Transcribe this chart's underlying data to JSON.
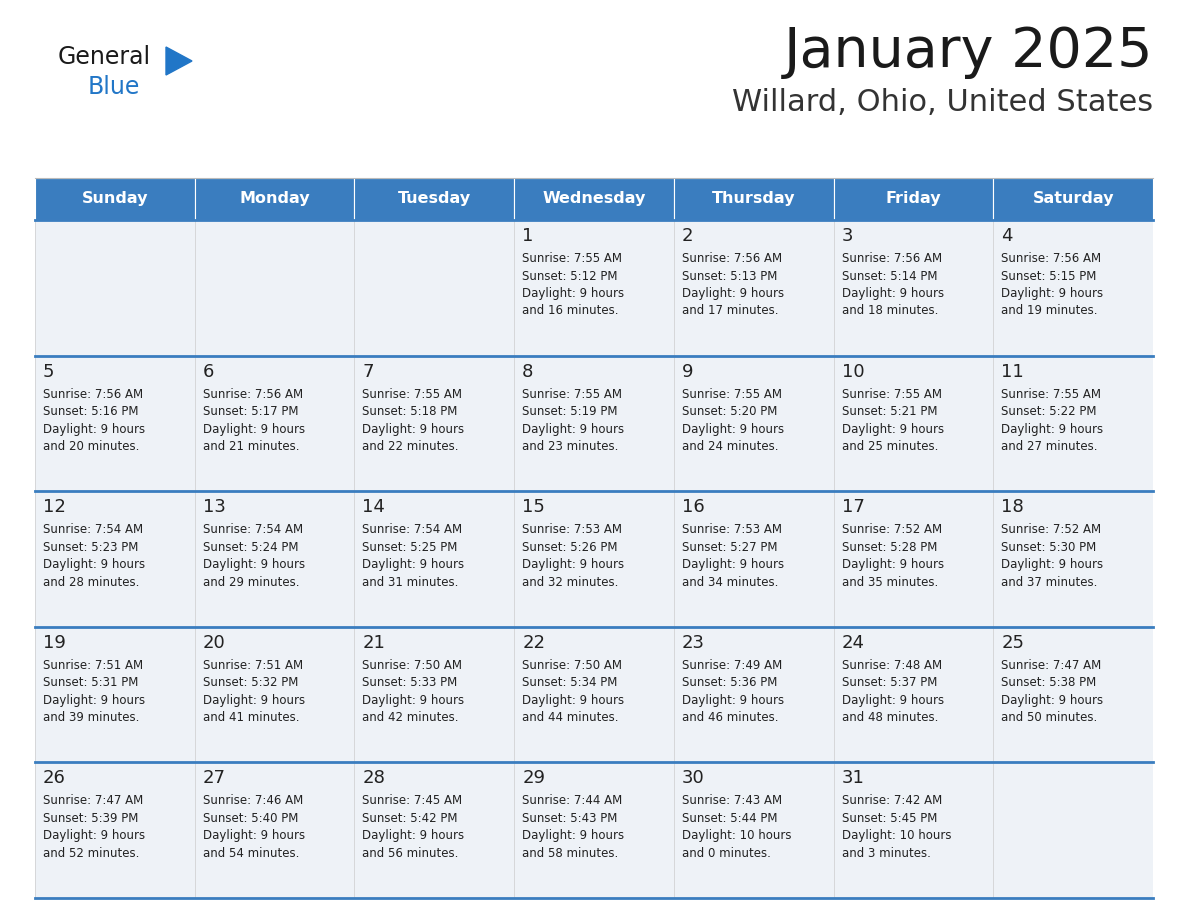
{
  "title": "January 2025",
  "subtitle": "Willard, Ohio, United States",
  "header_color": "#3a7dbf",
  "header_text_color": "#ffffff",
  "cell_bg_color": "#eef2f7",
  "border_color": "#3a7dbf",
  "title_color": "#1a1a1a",
  "subtitle_color": "#333333",
  "days_of_week": [
    "Sunday",
    "Monday",
    "Tuesday",
    "Wednesday",
    "Thursday",
    "Friday",
    "Saturday"
  ],
  "calendar": [
    [
      {
        "day": "",
        "sunrise": "",
        "sunset": "",
        "daylight": ""
      },
      {
        "day": "",
        "sunrise": "",
        "sunset": "",
        "daylight": ""
      },
      {
        "day": "",
        "sunrise": "",
        "sunset": "",
        "daylight": ""
      },
      {
        "day": "1",
        "sunrise": "7:55 AM",
        "sunset": "5:12 PM",
        "daylight": "9 hours\nand 16 minutes."
      },
      {
        "day": "2",
        "sunrise": "7:56 AM",
        "sunset": "5:13 PM",
        "daylight": "9 hours\nand 17 minutes."
      },
      {
        "day": "3",
        "sunrise": "7:56 AM",
        "sunset": "5:14 PM",
        "daylight": "9 hours\nand 18 minutes."
      },
      {
        "day": "4",
        "sunrise": "7:56 AM",
        "sunset": "5:15 PM",
        "daylight": "9 hours\nand 19 minutes."
      }
    ],
    [
      {
        "day": "5",
        "sunrise": "7:56 AM",
        "sunset": "5:16 PM",
        "daylight": "9 hours\nand 20 minutes."
      },
      {
        "day": "6",
        "sunrise": "7:56 AM",
        "sunset": "5:17 PM",
        "daylight": "9 hours\nand 21 minutes."
      },
      {
        "day": "7",
        "sunrise": "7:55 AM",
        "sunset": "5:18 PM",
        "daylight": "9 hours\nand 22 minutes."
      },
      {
        "day": "8",
        "sunrise": "7:55 AM",
        "sunset": "5:19 PM",
        "daylight": "9 hours\nand 23 minutes."
      },
      {
        "day": "9",
        "sunrise": "7:55 AM",
        "sunset": "5:20 PM",
        "daylight": "9 hours\nand 24 minutes."
      },
      {
        "day": "10",
        "sunrise": "7:55 AM",
        "sunset": "5:21 PM",
        "daylight": "9 hours\nand 25 minutes."
      },
      {
        "day": "11",
        "sunrise": "7:55 AM",
        "sunset": "5:22 PM",
        "daylight": "9 hours\nand 27 minutes."
      }
    ],
    [
      {
        "day": "12",
        "sunrise": "7:54 AM",
        "sunset": "5:23 PM",
        "daylight": "9 hours\nand 28 minutes."
      },
      {
        "day": "13",
        "sunrise": "7:54 AM",
        "sunset": "5:24 PM",
        "daylight": "9 hours\nand 29 minutes."
      },
      {
        "day": "14",
        "sunrise": "7:54 AM",
        "sunset": "5:25 PM",
        "daylight": "9 hours\nand 31 minutes."
      },
      {
        "day": "15",
        "sunrise": "7:53 AM",
        "sunset": "5:26 PM",
        "daylight": "9 hours\nand 32 minutes."
      },
      {
        "day": "16",
        "sunrise": "7:53 AM",
        "sunset": "5:27 PM",
        "daylight": "9 hours\nand 34 minutes."
      },
      {
        "day": "17",
        "sunrise": "7:52 AM",
        "sunset": "5:28 PM",
        "daylight": "9 hours\nand 35 minutes."
      },
      {
        "day": "18",
        "sunrise": "7:52 AM",
        "sunset": "5:30 PM",
        "daylight": "9 hours\nand 37 minutes."
      }
    ],
    [
      {
        "day": "19",
        "sunrise": "7:51 AM",
        "sunset": "5:31 PM",
        "daylight": "9 hours\nand 39 minutes."
      },
      {
        "day": "20",
        "sunrise": "7:51 AM",
        "sunset": "5:32 PM",
        "daylight": "9 hours\nand 41 minutes."
      },
      {
        "day": "21",
        "sunrise": "7:50 AM",
        "sunset": "5:33 PM",
        "daylight": "9 hours\nand 42 minutes."
      },
      {
        "day": "22",
        "sunrise": "7:50 AM",
        "sunset": "5:34 PM",
        "daylight": "9 hours\nand 44 minutes."
      },
      {
        "day": "23",
        "sunrise": "7:49 AM",
        "sunset": "5:36 PM",
        "daylight": "9 hours\nand 46 minutes."
      },
      {
        "day": "24",
        "sunrise": "7:48 AM",
        "sunset": "5:37 PM",
        "daylight": "9 hours\nand 48 minutes."
      },
      {
        "day": "25",
        "sunrise": "7:47 AM",
        "sunset": "5:38 PM",
        "daylight": "9 hours\nand 50 minutes."
      }
    ],
    [
      {
        "day": "26",
        "sunrise": "7:47 AM",
        "sunset": "5:39 PM",
        "daylight": "9 hours\nand 52 minutes."
      },
      {
        "day": "27",
        "sunrise": "7:46 AM",
        "sunset": "5:40 PM",
        "daylight": "9 hours\nand 54 minutes."
      },
      {
        "day": "28",
        "sunrise": "7:45 AM",
        "sunset": "5:42 PM",
        "daylight": "9 hours\nand 56 minutes."
      },
      {
        "day": "29",
        "sunrise": "7:44 AM",
        "sunset": "5:43 PM",
        "daylight": "9 hours\nand 58 minutes."
      },
      {
        "day": "30",
        "sunrise": "7:43 AM",
        "sunset": "5:44 PM",
        "daylight": "10 hours\nand 0 minutes."
      },
      {
        "day": "31",
        "sunrise": "7:42 AM",
        "sunset": "5:45 PM",
        "daylight": "10 hours\nand 3 minutes."
      },
      {
        "day": "",
        "sunrise": "",
        "sunset": "",
        "daylight": ""
      }
    ]
  ],
  "logo_color1": "#1a1a1a",
  "logo_color2": "#2176c7",
  "fig_width": 11.88,
  "fig_height": 9.18,
  "dpi": 100
}
